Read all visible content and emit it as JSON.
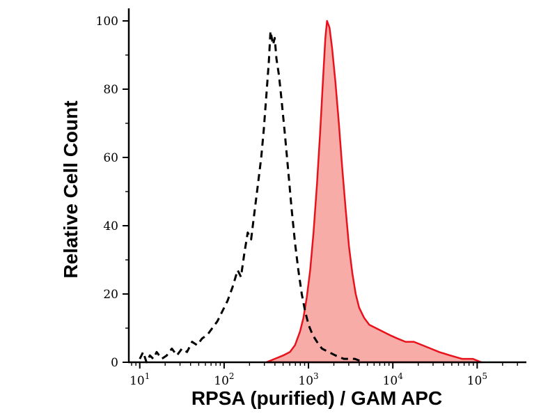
{
  "chart_data": {
    "type": "area",
    "title": "",
    "xlabel": "RPSA (purified) / GAM APC",
    "ylabel": "Relative Cell Count",
    "x_scale": "log10",
    "xlim_log10": [
      0.87,
      5.55
    ],
    "ylim": [
      0,
      100
    ],
    "y_ticks": [
      0,
      20,
      40,
      60,
      80,
      100
    ],
    "y_minor_ticks": [
      10,
      30,
      50,
      70,
      90
    ],
    "x_major_ticks_log10": [
      1,
      2,
      3,
      4,
      5
    ],
    "x_tick_base": "10",
    "x_tick_exponents": [
      "1",
      "2",
      "3",
      "4",
      "5"
    ],
    "grid": false,
    "legend": "none",
    "background": "#ffffff",
    "axis_color": "#000000",
    "series": [
      {
        "name": "black-dashed-control",
        "style": "dashed",
        "color": "#000000",
        "fill": "none",
        "stroke_width": 3,
        "points_log10x_y": [
          [
            1.0,
            1
          ],
          [
            1.04,
            3
          ],
          [
            1.08,
            0
          ],
          [
            1.12,
            2
          ],
          [
            1.16,
            1
          ],
          [
            1.2,
            3
          ],
          [
            1.26,
            1
          ],
          [
            1.32,
            2
          ],
          [
            1.38,
            4
          ],
          [
            1.44,
            2
          ],
          [
            1.5,
            4
          ],
          [
            1.56,
            3
          ],
          [
            1.62,
            6
          ],
          [
            1.68,
            5
          ],
          [
            1.74,
            7
          ],
          [
            1.8,
            8
          ],
          [
            1.86,
            10
          ],
          [
            1.92,
            12
          ],
          [
            1.98,
            15
          ],
          [
            2.04,
            18
          ],
          [
            2.1,
            22
          ],
          [
            2.16,
            27
          ],
          [
            2.2,
            25
          ],
          [
            2.24,
            32
          ],
          [
            2.28,
            38
          ],
          [
            2.32,
            36
          ],
          [
            2.36,
            44
          ],
          [
            2.4,
            52
          ],
          [
            2.44,
            60
          ],
          [
            2.47,
            68
          ],
          [
            2.5,
            78
          ],
          [
            2.53,
            88
          ],
          [
            2.55,
            97
          ],
          [
            2.58,
            93
          ],
          [
            2.6,
            95
          ],
          [
            2.62,
            89
          ],
          [
            2.65,
            84
          ],
          [
            2.68,
            77
          ],
          [
            2.72,
            67
          ],
          [
            2.76,
            56
          ],
          [
            2.8,
            45
          ],
          [
            2.84,
            35
          ],
          [
            2.88,
            27
          ],
          [
            2.92,
            20
          ],
          [
            2.96,
            15
          ],
          [
            3.0,
            11
          ],
          [
            3.05,
            8
          ],
          [
            3.1,
            6
          ],
          [
            3.16,
            4
          ],
          [
            3.24,
            3
          ],
          [
            3.32,
            2
          ],
          [
            3.42,
            1
          ],
          [
            3.55,
            1
          ],
          [
            3.65,
            0
          ]
        ]
      },
      {
        "name": "red-filled-sample",
        "style": "solid",
        "color": "#e8121c",
        "fill": "rgba(240,70,60,0.45)",
        "stroke_width": 2.5,
        "points_log10x_y": [
          [
            2.5,
            0
          ],
          [
            2.6,
            1
          ],
          [
            2.7,
            2
          ],
          [
            2.78,
            3
          ],
          [
            2.84,
            5
          ],
          [
            2.9,
            9
          ],
          [
            2.94,
            13
          ],
          [
            2.98,
            19
          ],
          [
            3.02,
            27
          ],
          [
            3.06,
            38
          ],
          [
            3.1,
            52
          ],
          [
            3.14,
            68
          ],
          [
            3.17,
            82
          ],
          [
            3.2,
            95
          ],
          [
            3.22,
            100
          ],
          [
            3.25,
            98
          ],
          [
            3.28,
            92
          ],
          [
            3.32,
            82
          ],
          [
            3.36,
            70
          ],
          [
            3.4,
            57
          ],
          [
            3.44,
            45
          ],
          [
            3.48,
            34
          ],
          [
            3.52,
            26
          ],
          [
            3.56,
            20
          ],
          [
            3.6,
            16
          ],
          [
            3.66,
            13
          ],
          [
            3.72,
            11
          ],
          [
            3.8,
            10
          ],
          [
            3.88,
            9
          ],
          [
            3.96,
            8
          ],
          [
            4.05,
            7
          ],
          [
            4.15,
            6
          ],
          [
            4.25,
            6
          ],
          [
            4.35,
            5
          ],
          [
            4.45,
            4
          ],
          [
            4.55,
            3
          ],
          [
            4.68,
            2
          ],
          [
            4.82,
            1
          ],
          [
            4.95,
            1
          ],
          [
            5.05,
            0
          ]
        ]
      }
    ]
  }
}
